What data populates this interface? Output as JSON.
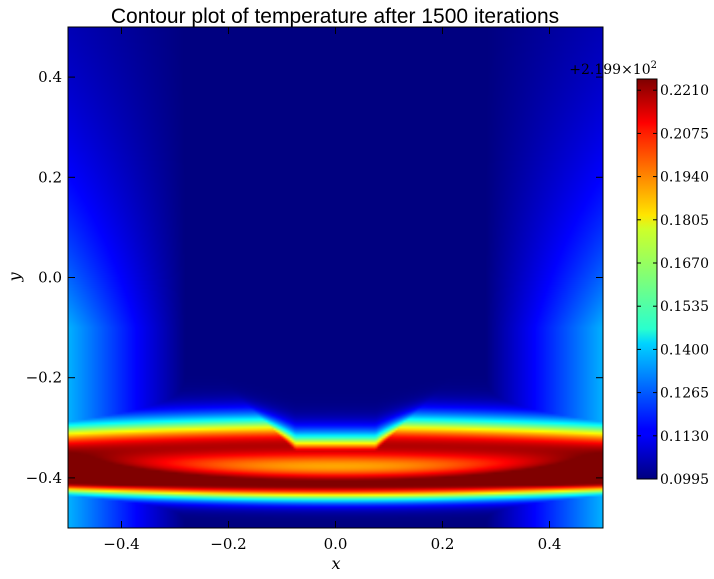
{
  "chart_data": {
    "type": "heatmap",
    "title": "Contour plot of temperature after 1500 iterations",
    "xlabel": "x",
    "ylabel": "y",
    "xlim": [
      -0.5,
      0.5
    ],
    "ylim": [
      -0.5,
      0.5
    ],
    "x_ticks": [
      -0.4,
      -0.2,
      0.0,
      0.2,
      0.4
    ],
    "x_tick_labels": [
      "−0.4",
      "−0.2",
      "0.0",
      "0.2",
      "0.4"
    ],
    "y_ticks": [
      -0.4,
      -0.2,
      0.0,
      0.2,
      0.4
    ],
    "y_tick_labels": [
      "−0.4",
      "−0.2",
      "0.0",
      "0.2",
      "0.4"
    ],
    "colormap": "jet",
    "colorbar": {
      "min": 0.0995,
      "max": 0.2245,
      "ticks": [
        0.0995,
        0.113,
        0.1265,
        0.14,
        0.1535,
        0.167,
        0.1805,
        0.194,
        0.2075,
        0.221
      ],
      "tick_labels": [
        "0.0995",
        "0.1130",
        "0.1265",
        "0.1400",
        "0.1535",
        "0.1670",
        "0.1805",
        "0.1940",
        "0.2075",
        "0.2210"
      ],
      "offset_prefix": "+2.199",
      "offset_suffix": "×10",
      "offset_exponent": "2"
    },
    "field_description_points": {
      "hot_band_center_y": [
        -0.42,
        -0.33
      ],
      "cold_region_bottom_y_at_center": -0.34,
      "cold_region_bottom_y_at_x_0_4": 0.0
    }
  }
}
